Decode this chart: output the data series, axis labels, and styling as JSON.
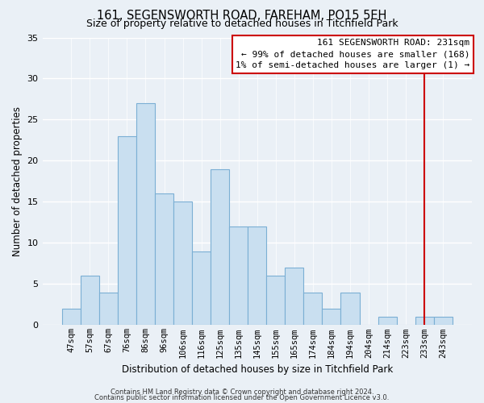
{
  "title": "161, SEGENSWORTH ROAD, FAREHAM, PO15 5EH",
  "subtitle": "Size of property relative to detached houses in Titchfield Park",
  "xlabel": "Distribution of detached houses by size in Titchfield Park",
  "ylabel": "Number of detached properties",
  "bar_labels": [
    "47sqm",
    "57sqm",
    "67sqm",
    "76sqm",
    "86sqm",
    "96sqm",
    "106sqm",
    "116sqm",
    "125sqm",
    "135sqm",
    "145sqm",
    "155sqm",
    "165sqm",
    "174sqm",
    "184sqm",
    "194sqm",
    "204sqm",
    "214sqm",
    "223sqm",
    "233sqm",
    "243sqm"
  ],
  "bar_values": [
    2,
    6,
    4,
    23,
    27,
    16,
    15,
    9,
    19,
    12,
    12,
    6,
    7,
    4,
    2,
    4,
    0,
    1,
    0,
    1,
    1
  ],
  "bar_color": "#c9dff0",
  "bar_edge_color": "#7bafd4",
  "vline_color": "#cc0000",
  "annotation_text": "161 SEGENSWORTH ROAD: 231sqm\n← 99% of detached houses are smaller (168)\n1% of semi-detached houses are larger (1) →",
  "annotation_box_color": "#ffffff",
  "annotation_box_edge_color": "#cc0000",
  "ylim": [
    0,
    35
  ],
  "yticks": [
    0,
    5,
    10,
    15,
    20,
    25,
    30,
    35
  ],
  "footnote1": "Contains HM Land Registry data © Crown copyright and database right 2024.",
  "footnote2": "Contains public sector information licensed under the Open Government Licence v3.0.",
  "background_color": "#eaf0f6",
  "grid_color": "#ffffff",
  "title_fontsize": 10.5,
  "subtitle_fontsize": 9,
  "axis_label_fontsize": 8.5,
  "tick_fontsize": 7.5,
  "annot_fontsize": 8,
  "footnote_fontsize": 6
}
